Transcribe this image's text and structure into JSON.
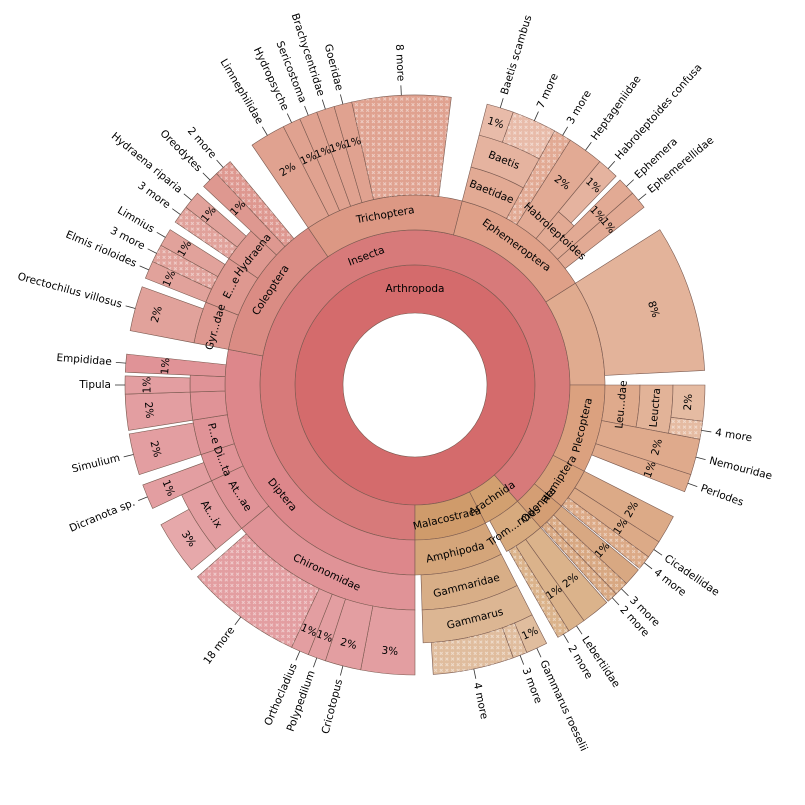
{
  "chart_data": {
    "type": "sunburst",
    "root": {
      "name": "Arthropoda",
      "value": 100,
      "color": "#d46b6c",
      "children": [
        {
          "name": "Insecta",
          "value": 88.5,
          "color": "#d77a7a",
          "children": [
            {
              "name": "Diptera",
              "value": 28,
              "color": "#dd878b",
              "children": [
                {
                  "name": "Chironomidae",
                  "value": 14,
                  "children": [
                    {
                      "name": null,
                      "value": 3,
                      "label": "3%"
                    },
                    {
                      "name": "Cricotopus",
                      "value": 2,
                      "label": "2%"
                    },
                    {
                      "name": "Polypedilum",
                      "value": 1,
                      "label": "1%"
                    },
                    {
                      "name": "Orthocladius",
                      "value": 1,
                      "label": "1%"
                    },
                    {
                      "name": "18 more",
                      "value": 6.5,
                      "hatched": true
                    }
                  ]
                },
                {
                  "name": "At...ae",
                  "value": 4,
                  "children": [
                    {
                      "name": "At...ix",
                      "value": 4,
                      "children": [
                        {
                          "name": null,
                          "value": 3,
                          "label": "3%"
                        }
                      ]
                    }
                  ]
                },
                {
                  "name": "Di...ta",
                  "value": 2,
                  "children": [
                    {
                      "name": "Dicranota sp.",
                      "value": 1.4,
                      "label": "1%"
                    }
                  ]
                },
                {
                  "name": "P...e",
                  "value": 2.5,
                  "children": [
                    {
                      "name": "Simulium",
                      "value": 2.3,
                      "label": "2%"
                    }
                  ]
                },
                {
                  "name": null,
                  "value": 2,
                  "children": [
                    {
                      "name": null,
                      "value": 2,
                      "label": "2%"
                    }
                  ]
                },
                {
                  "name": null,
                  "value": 1.2,
                  "children": [
                    {
                      "name": "Tipula",
                      "value": 1,
                      "label": "1%"
                    }
                  ]
                },
                {
                  "name": "Empididae",
                  "value": 1,
                  "label": "1%"
                }
              ]
            },
            {
              "name": "Coleoptera",
              "value": 12.5,
              "color": "#da8c84",
              "children": [
                {
                  "name": "Gyr...dae",
                  "value": 3,
                  "children": [
                    {
                      "name": "Orectochilus villosus",
                      "value": 2.5,
                      "label": "2%"
                    }
                  ]
                },
                {
                  "name": "E...e",
                  "value": 3.5,
                  "children": [
                    {
                      "name": "Elmis rioloides",
                      "value": 1,
                      "label": "1%"
                    },
                    {
                      "name": "3 more",
                      "value": 1,
                      "hatched": true
                    },
                    {
                      "name": "Limnius",
                      "value": 1,
                      "label": "1%"
                    }
                  ]
                },
                {
                  "name": "Hydraena",
                  "value": 2.5,
                  "children": [
                    {
                      "name": "3 more",
                      "value": 1,
                      "hatched": true
                    },
                    {
                      "name": "Hydraena riparia",
                      "value": 1,
                      "label": "1%"
                    }
                  ]
                },
                {
                  "name": "Oreodytes",
                  "value": 1,
                  "label": "1%"
                },
                {
                  "name": "2 more",
                  "value": 1,
                  "hatched": true
                }
              ]
            },
            {
              "name": "Trichoptera",
              "value": 13.5,
              "color": "#dc9884",
              "children": [
                {
                  "name": "Limnephilidae",
                  "value": 2,
                  "label": "2%"
                },
                {
                  "name": "Hydropsyche",
                  "value": 1,
                  "label": "1%"
                },
                {
                  "name": "Sericostoma",
                  "value": 1,
                  "label": "1%"
                },
                {
                  "name": "Brachycentridae",
                  "value": 1,
                  "label": "1%"
                },
                {
                  "name": "Goeridae",
                  "value": 1,
                  "label": "1%"
                },
                {
                  "name": "8 more",
                  "value": 5.5,
                  "hatched": true
                }
              ]
            },
            {
              "name": "Ephemeroptera",
              "value": 12,
              "color": "#dfa088",
              "children": [
                {
                  "name": "Baetidae",
                  "value": 4,
                  "children": [
                    {
                      "name": "Baetis",
                      "value": 4,
                      "children": [
                        {
                          "name": "Baetis scambus",
                          "value": 1.5,
                          "label": "1%"
                        },
                        {
                          "name": "7 more",
                          "value": 2.5,
                          "hatched": true
                        }
                      ]
                    }
                  ]
                },
                {
                  "name": "3 more",
                  "value": 1,
                  "hatched": true
                },
                {
                  "name": "Heptageniidae",
                  "value": 2,
                  "label": "2%"
                },
                {
                  "name": "Habroleptoides",
                  "value": 1.5,
                  "children": [
                    {
                      "name": "Habroleptoides confusa",
                      "value": 1.2,
                      "label": "1%"
                    }
                  ]
                },
                {
                  "name": "Ephemera",
                  "value": 1,
                  "label": "1%"
                },
                {
                  "name": "Ephemerellidae",
                  "value": 1,
                  "label": "1%"
                }
              ]
            },
            {
              "name": null,
              "value": 9,
              "color": "#e0ab8f",
              "children": [
                {
                  "name": null,
                  "value": 8.2,
                  "label": "8%"
                }
              ]
            },
            {
              "name": "Plecoptera",
              "value": 7.5,
              "color": "#dba17f",
              "children": [
                {
                  "name": "Leu...dae",
                  "value": 3,
                  "children": [
                    {
                      "name": "Leuctra",
                      "value": 3,
                      "children": [
                        {
                          "name": null,
                          "value": 2,
                          "label": "2%"
                        },
                        {
                          "name": "4 more",
                          "value": 1,
                          "hatched": true
                        }
                      ]
                    }
                  ]
                },
                {
                  "name": "Nemouridae",
                  "value": 2,
                  "label": "2%"
                },
                {
                  "name": "Perlodes",
                  "value": 1,
                  "label": "1%"
                }
              ]
            },
            {
              "name": "Hemiptera",
              "value": 3.5,
              "color": "#d8a07a",
              "children": [
                {
                  "name": null,
                  "value": 1.6,
                  "label": "2%"
                },
                {
                  "name": "Cicadellidae",
                  "value": 1,
                  "label": "1%"
                },
                {
                  "name": "4 more",
                  "value": 0.8,
                  "hatched": true
                }
              ]
            },
            {
              "name": "Odonata",
              "value": 2.5,
              "color": "#d49e74",
              "children": [
                {
                  "name": null,
                  "value": 1,
                  "label": "1%"
                },
                {
                  "name": "3 more",
                  "value": 0.8,
                  "hatched": true
                },
                {
                  "name": "2 more",
                  "value": 0.6,
                  "hatched": true
                }
              ]
            }
          ]
        },
        {
          "name": "Arachnida",
          "value": 4,
          "color": "#d2a070",
          "children": [
            {
              "name": "Trom...rmes",
              "value": 3.5,
              "children": [
                {
                  "name": null,
                  "value": 1.6,
                  "label": "2%"
                },
                {
                  "name": "Lebertiidae",
                  "value": 1,
                  "label": "1%"
                },
                {
                  "name": "2 more",
                  "value": 0.7,
                  "hatched": true
                }
              ]
            }
          ]
        },
        {
          "name": "Malacostraca",
          "value": 7.5,
          "color": "#cf9b6b",
          "children": [
            {
              "name": "Amphipoda",
              "value": 7.5,
              "children": [
                {
                  "name": "Gammaridae",
                  "value": 7,
                  "children": [
                    {
                      "name": "Gammarus",
                      "value": 7,
                      "children": [
                        {
                          "name": "Gammarus roeselii",
                          "value": 1.2,
                          "label": "1%"
                        },
                        {
                          "name": "3 more",
                          "value": 0.8,
                          "hatched": true
                        },
                        {
                          "name": "4 more",
                          "value": 4.5,
                          "hatched": true
                        }
                      ]
                    }
                  ]
                }
              ]
            }
          ]
        }
      ]
    }
  }
}
